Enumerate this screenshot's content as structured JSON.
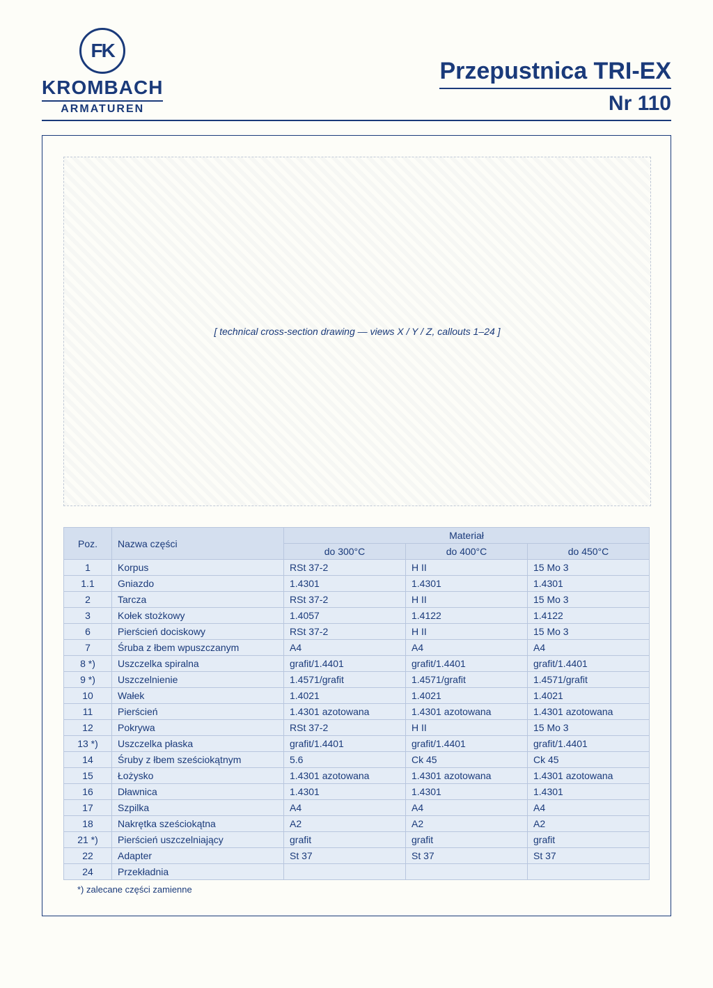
{
  "brand": {
    "logo_initials": "FK",
    "name": "KROMBACH",
    "subtitle": "ARMATUREN"
  },
  "title": {
    "line1": "Przepustnica TRI-EX",
    "line2": "Nr 110"
  },
  "diagram_placeholder": "[ technical cross-section drawing — views X / Y / Z, callouts 1–24 ]",
  "table": {
    "col_poz": "Poz.",
    "col_name": "Nazwa części",
    "col_material": "Materiał",
    "sub_300": "do 300°C",
    "sub_400": "do 400°C",
    "sub_450": "do 450°C",
    "rows": [
      {
        "poz": "1",
        "name": "Korpus",
        "c300": "RSt 37-2",
        "c400": "H II",
        "c450": "15 Mo 3"
      },
      {
        "poz": "1.1",
        "name": "Gniazdo",
        "c300": "1.4301",
        "c400": "1.4301",
        "c450": "1.4301"
      },
      {
        "poz": "2",
        "name": "Tarcza",
        "c300": "RSt 37-2",
        "c400": "H II",
        "c450": "15 Mo 3"
      },
      {
        "poz": "3",
        "name": "Kołek stożkowy",
        "c300": "1.4057",
        "c400": "1.4122",
        "c450": "1.4122"
      },
      {
        "poz": "6",
        "name": "Pierścień dociskowy",
        "c300": "RSt 37-2",
        "c400": "H II",
        "c450": "15 Mo 3"
      },
      {
        "poz": "7",
        "name": "Śruba z łbem wpuszczanym",
        "c300": "A4",
        "c400": "A4",
        "c450": "A4"
      },
      {
        "poz": "8 *)",
        "name": "Uszczelka spiralna",
        "c300": "grafit/1.4401",
        "c400": "grafit/1.4401",
        "c450": "grafit/1.4401"
      },
      {
        "poz": "9 *)",
        "name": "Uszczelnienie",
        "c300": "1.4571/grafit",
        "c400": "1.4571/grafit",
        "c450": "1.4571/grafit"
      },
      {
        "poz": "10",
        "name": "Wałek",
        "c300": "1.4021",
        "c400": "1.4021",
        "c450": "1.4021"
      },
      {
        "poz": "11",
        "name": "Pierścień",
        "c300": "1.4301 azotowana",
        "c400": "1.4301 azotowana",
        "c450": "1.4301 azotowana"
      },
      {
        "poz": "12",
        "name": "Pokrywa",
        "c300": "RSt 37-2",
        "c400": "H II",
        "c450": "15 Mo 3"
      },
      {
        "poz": "13 *)",
        "name": "Uszczelka płaska",
        "c300": "grafit/1.4401",
        "c400": "grafit/1.4401",
        "c450": "grafit/1.4401"
      },
      {
        "poz": "14",
        "name": "Śruby z łbem sześciokątnym",
        "c300": "5.6",
        "c400": "Ck 45",
        "c450": "Ck 45"
      },
      {
        "poz": "15",
        "name": "Łożysko",
        "c300": "1.4301 azotowana",
        "c400": "1.4301 azotowana",
        "c450": "1.4301 azotowana"
      },
      {
        "poz": "16",
        "name": "Dławnica",
        "c300": "1.4301",
        "c400": "1.4301",
        "c450": "1.4301"
      },
      {
        "poz": "17",
        "name": "Szpilka",
        "c300": "A4",
        "c400": "A4",
        "c450": "A4"
      },
      {
        "poz": "18",
        "name": "Nakrętka sześciokątna",
        "c300": "A2",
        "c400": "A2",
        "c450": "A2"
      },
      {
        "poz": "21 *)",
        "name": "Pierścień uszczelniający",
        "c300": "grafit",
        "c400": "grafit",
        "c450": "grafit"
      },
      {
        "poz": "22",
        "name": "Adapter",
        "c300": "St 37",
        "c400": "St 37",
        "c450": "St 37"
      },
      {
        "poz": "24",
        "name": "Przekładnia",
        "c300": "",
        "c400": "",
        "c450": ""
      }
    ]
  },
  "footnote": "*) zalecane części zamienne",
  "colors": {
    "primary": "#1a3a7a",
    "table_bg": "#e4ecf6",
    "table_header_bg": "#d4dfef",
    "table_border": "#b8c6de",
    "page_bg": "#fdfdf8"
  }
}
